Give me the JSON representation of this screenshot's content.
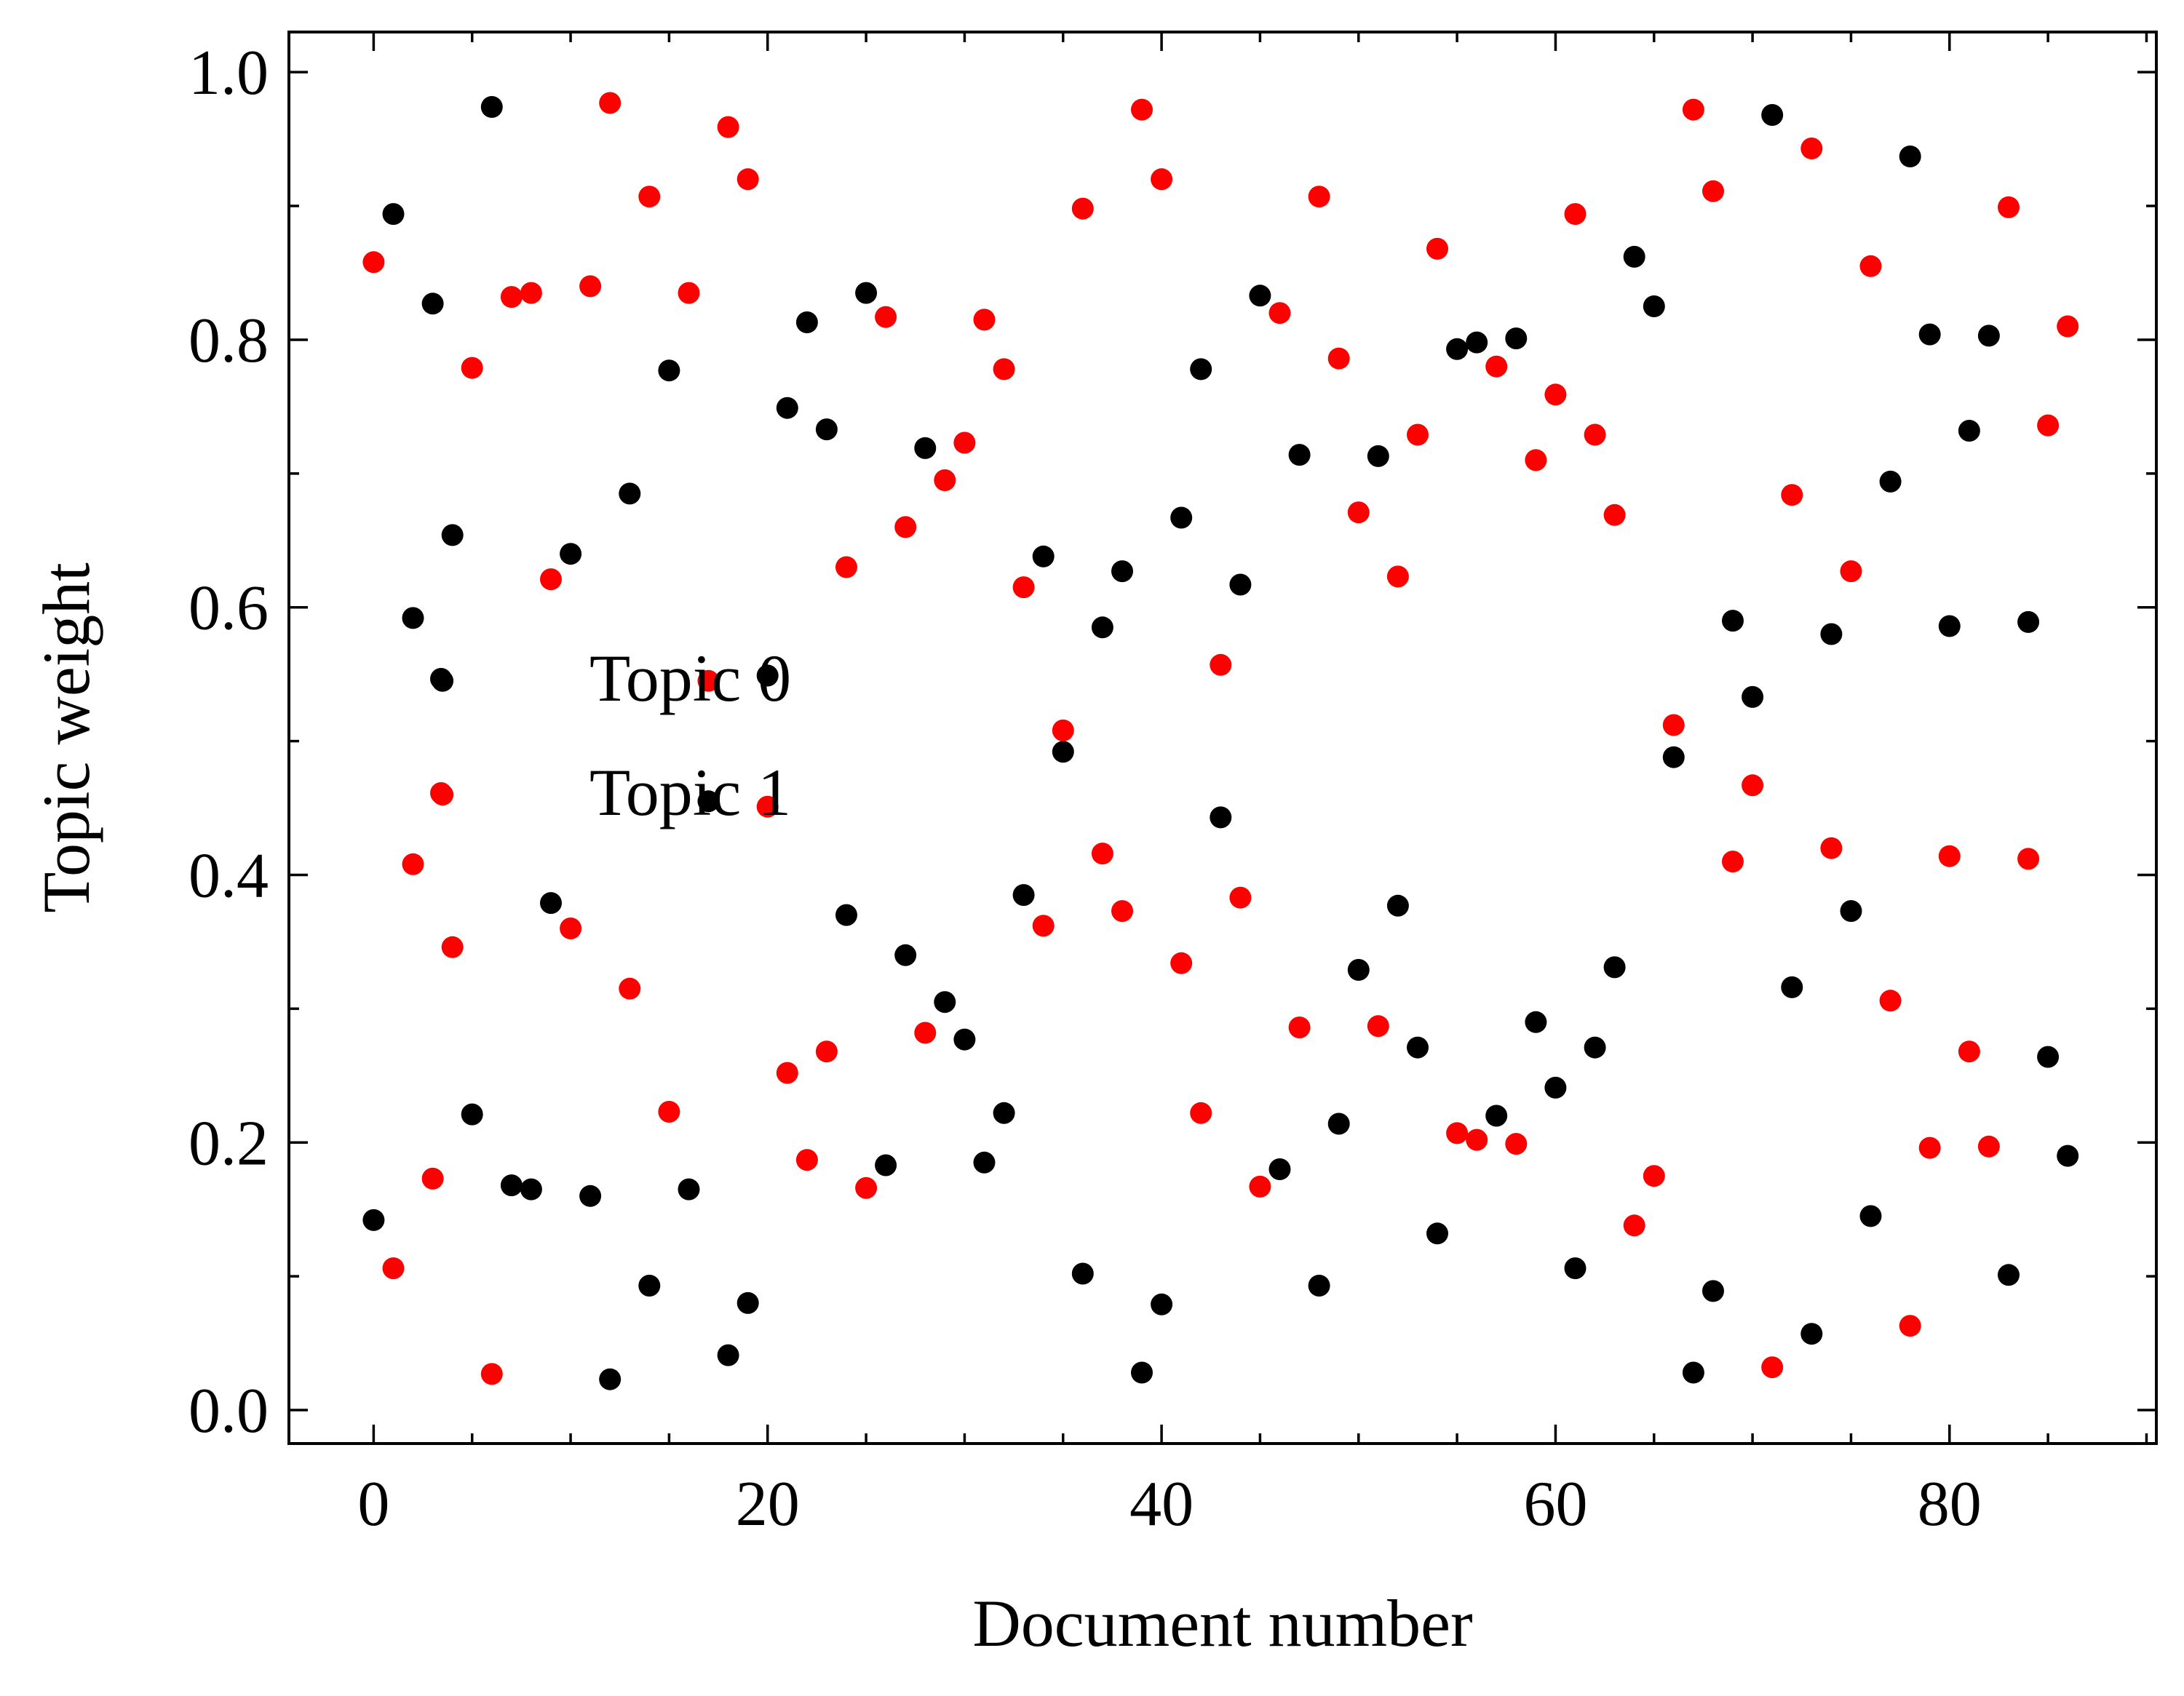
{
  "chart_data": {
    "type": "scatter",
    "title": "",
    "xlabel": "Document number",
    "ylabel": "Topic weight",
    "xlim": [
      -4.3,
      90.5
    ],
    "ylim": [
      -0.025,
      1.03
    ],
    "xticks": [
      0,
      20,
      40,
      60,
      80
    ],
    "xtick_labels": [
      "0",
      "20",
      "40",
      "60",
      "80"
    ],
    "yticks": [
      0.0,
      0.2,
      0.4,
      0.6,
      0.8,
      1.0
    ],
    "ytick_labels": [
      "0.0",
      "0.2",
      "0.4",
      "0.6",
      "0.8",
      "1.0"
    ],
    "grid": false,
    "legend_position": "center-left",
    "series": [
      {
        "name": "Topic 0",
        "color": "#000000",
        "points": [
          [
            0,
            0.142
          ],
          [
            1,
            0.894
          ],
          [
            2,
            0.592
          ],
          [
            3,
            0.827
          ],
          [
            3.5,
            0.545
          ],
          [
            4,
            0.654
          ],
          [
            5,
            0.221
          ],
          [
            6,
            0.974
          ],
          [
            7,
            0.168
          ],
          [
            8,
            0.165
          ],
          [
            9,
            0.379
          ],
          [
            10,
            0.64
          ],
          [
            11,
            0.16
          ],
          [
            13,
            0.685
          ],
          [
            12,
            0.023
          ],
          [
            14,
            0.093
          ],
          [
            15,
            0.777
          ],
          [
            16,
            0.165
          ],
          [
            17,
            0.455
          ],
          [
            18,
            0.041
          ],
          [
            19,
            0.08
          ],
          [
            20,
            0.549
          ],
          [
            21,
            0.749
          ],
          [
            22,
            0.813
          ],
          [
            23,
            0.733
          ],
          [
            24,
            0.37
          ],
          [
            25,
            0.835
          ],
          [
            26,
            0.183
          ],
          [
            27,
            0.34
          ],
          [
            28,
            0.719
          ],
          [
            29,
            0.305
          ],
          [
            30,
            0.277
          ],
          [
            31,
            0.185
          ],
          [
            32,
            0.222
          ],
          [
            33,
            0.385
          ],
          [
            34,
            0.638
          ],
          [
            35,
            0.492
          ],
          [
            36,
            0.102
          ],
          [
            37,
            0.585
          ],
          [
            38,
            0.627
          ],
          [
            39,
            0.028
          ],
          [
            40,
            0.079
          ],
          [
            41,
            0.667
          ],
          [
            42,
            0.778
          ],
          [
            43,
            0.443
          ],
          [
            44,
            0.617
          ],
          [
            45,
            0.833
          ],
          [
            46,
            0.18
          ],
          [
            47,
            0.714
          ],
          [
            48,
            0.093
          ],
          [
            49,
            0.214
          ],
          [
            50,
            0.329
          ],
          [
            51,
            0.713
          ],
          [
            52,
            0.377
          ],
          [
            53,
            0.271
          ],
          [
            54,
            0.132
          ],
          [
            55,
            0.793
          ],
          [
            56,
            0.798
          ],
          [
            57,
            0.22
          ],
          [
            58,
            0.801
          ],
          [
            59,
            0.29
          ],
          [
            60,
            0.241
          ],
          [
            61,
            0.106
          ],
          [
            62,
            0.271
          ],
          [
            63,
            0.331
          ],
          [
            64,
            0.862
          ],
          [
            65,
            0.825
          ],
          [
            66,
            0.488
          ],
          [
            67,
            0.028
          ],
          [
            68,
            0.089
          ],
          [
            69,
            0.59
          ],
          [
            70,
            0.533
          ],
          [
            71,
            0.968
          ],
          [
            72,
            0.316
          ],
          [
            73,
            0.057
          ],
          [
            74,
            0.58
          ],
          [
            75,
            0.373
          ],
          [
            76,
            0.145
          ],
          [
            77,
            0.694
          ],
          [
            78,
            0.937
          ],
          [
            79,
            0.804
          ],
          [
            80,
            0.586
          ],
          [
            81,
            0.732
          ],
          [
            82,
            0.803
          ],
          [
            83,
            0.101
          ],
          [
            84,
            0.589
          ],
          [
            85,
            0.264
          ],
          [
            86,
            0.19
          ]
        ]
      },
      {
        "name": "Topic 1",
        "color": "#ff0000",
        "points": [
          [
            0,
            0.858
          ],
          [
            1,
            0.106
          ],
          [
            2,
            0.408
          ],
          [
            3,
            0.173
          ],
          [
            3.5,
            0.46
          ],
          [
            4,
            0.346
          ],
          [
            5,
            0.779
          ],
          [
            6,
            0.027
          ],
          [
            7,
            0.832
          ],
          [
            8,
            0.835
          ],
          [
            9,
            0.621
          ],
          [
            10,
            0.36
          ],
          [
            11,
            0.84
          ],
          [
            12,
            0.977
          ],
          [
            13,
            0.315
          ],
          [
            14,
            0.907
          ],
          [
            15,
            0.223
          ],
          [
            16,
            0.835
          ],
          [
            17,
            0.545
          ],
          [
            18,
            0.959
          ],
          [
            19,
            0.92
          ],
          [
            20,
            0.451
          ],
          [
            21,
            0.252
          ],
          [
            22,
            0.187
          ],
          [
            23,
            0.268
          ],
          [
            24,
            0.63
          ],
          [
            25,
            0.166
          ],
          [
            26,
            0.817
          ],
          [
            27,
            0.66
          ],
          [
            28,
            0.282
          ],
          [
            29,
            0.695
          ],
          [
            30,
            0.723
          ],
          [
            31,
            0.815
          ],
          [
            32,
            0.778
          ],
          [
            33,
            0.615
          ],
          [
            34,
            0.362
          ],
          [
            35,
            0.508
          ],
          [
            36,
            0.898
          ],
          [
            37,
            0.416
          ],
          [
            38,
            0.373
          ],
          [
            39,
            0.972
          ],
          [
            40,
            0.92
          ],
          [
            41,
            0.334
          ],
          [
            42,
            0.222
          ],
          [
            43,
            0.557
          ],
          [
            44,
            0.383
          ],
          [
            45,
            0.167
          ],
          [
            46,
            0.82
          ],
          [
            47,
            0.286
          ],
          [
            48,
            0.907
          ],
          [
            49,
            0.786
          ],
          [
            50,
            0.671
          ],
          [
            51,
            0.287
          ],
          [
            52,
            0.623
          ],
          [
            53,
            0.729
          ],
          [
            54,
            0.868
          ],
          [
            55,
            0.207
          ],
          [
            56,
            0.202
          ],
          [
            57,
            0.78
          ],
          [
            58,
            0.199
          ],
          [
            59,
            0.71
          ],
          [
            60,
            0.759
          ],
          [
            61,
            0.894
          ],
          [
            62,
            0.729
          ],
          [
            63,
            0.669
          ],
          [
            64,
            0.138
          ],
          [
            65,
            0.175
          ],
          [
            66,
            0.512
          ],
          [
            67,
            0.972
          ],
          [
            68,
            0.911
          ],
          [
            69,
            0.41
          ],
          [
            70,
            0.467
          ],
          [
            71,
            0.032
          ],
          [
            72,
            0.684
          ],
          [
            73,
            0.943
          ],
          [
            74,
            0.42
          ],
          [
            75,
            0.627
          ],
          [
            76,
            0.855
          ],
          [
            77,
            0.306
          ],
          [
            78,
            0.063
          ],
          [
            79,
            0.196
          ],
          [
            80,
            0.414
          ],
          [
            81,
            0.268
          ],
          [
            82,
            0.197
          ],
          [
            83,
            0.899
          ],
          [
            84,
            0.412
          ],
          [
            85,
            0.736
          ],
          [
            86,
            0.81
          ]
        ]
      }
    ]
  }
}
